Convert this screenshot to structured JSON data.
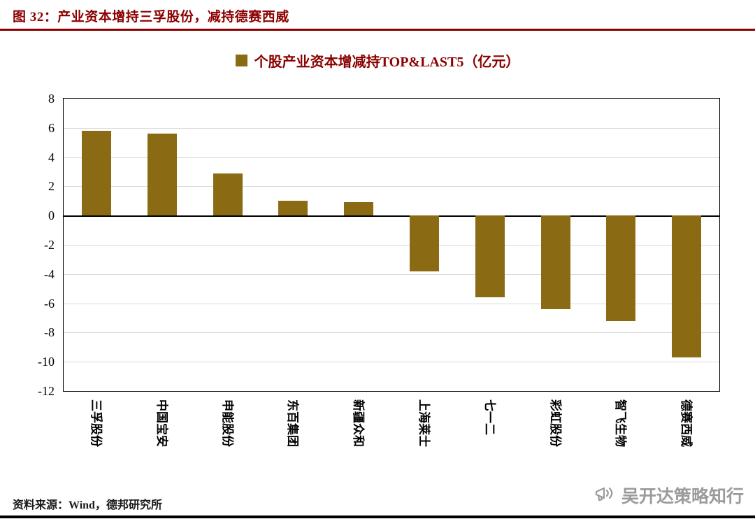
{
  "page": {
    "title": "图 32：产业资本增持三孚股份，减持德赛西威",
    "source_note": "资料来源：Wind，德邦研究所",
    "watermark_text": "吴开达策略知行"
  },
  "legend": {
    "label": "个股产业资本增减持TOP&LAST5（亿元）"
  },
  "colors": {
    "accent_red": "#8B0000",
    "bar": "#8A6B14",
    "grid": "#D9D9D9",
    "zero_axis": "#000000",
    "text": "#000000",
    "watermark": "#9B9B9B"
  },
  "chart_data": {
    "type": "bar",
    "title": "个股产业资本增减持TOP&LAST5（亿元）",
    "categories": [
      "三孚股份",
      "中国宝安",
      "申能股份",
      "东百集团",
      "新疆众和",
      "上海莱士",
      "七一二",
      "彩虹股份",
      "智飞生物",
      "德赛西威"
    ],
    "values": [
      5.8,
      5.6,
      2.9,
      1.0,
      0.9,
      -3.8,
      -5.6,
      -6.4,
      -7.2,
      -9.7
    ],
    "xlabel": "",
    "ylabel": "",
    "unit": "亿元",
    "ylim": [
      -12,
      8
    ],
    "ytick_step": 2,
    "grid": true,
    "legend_position": "top"
  }
}
